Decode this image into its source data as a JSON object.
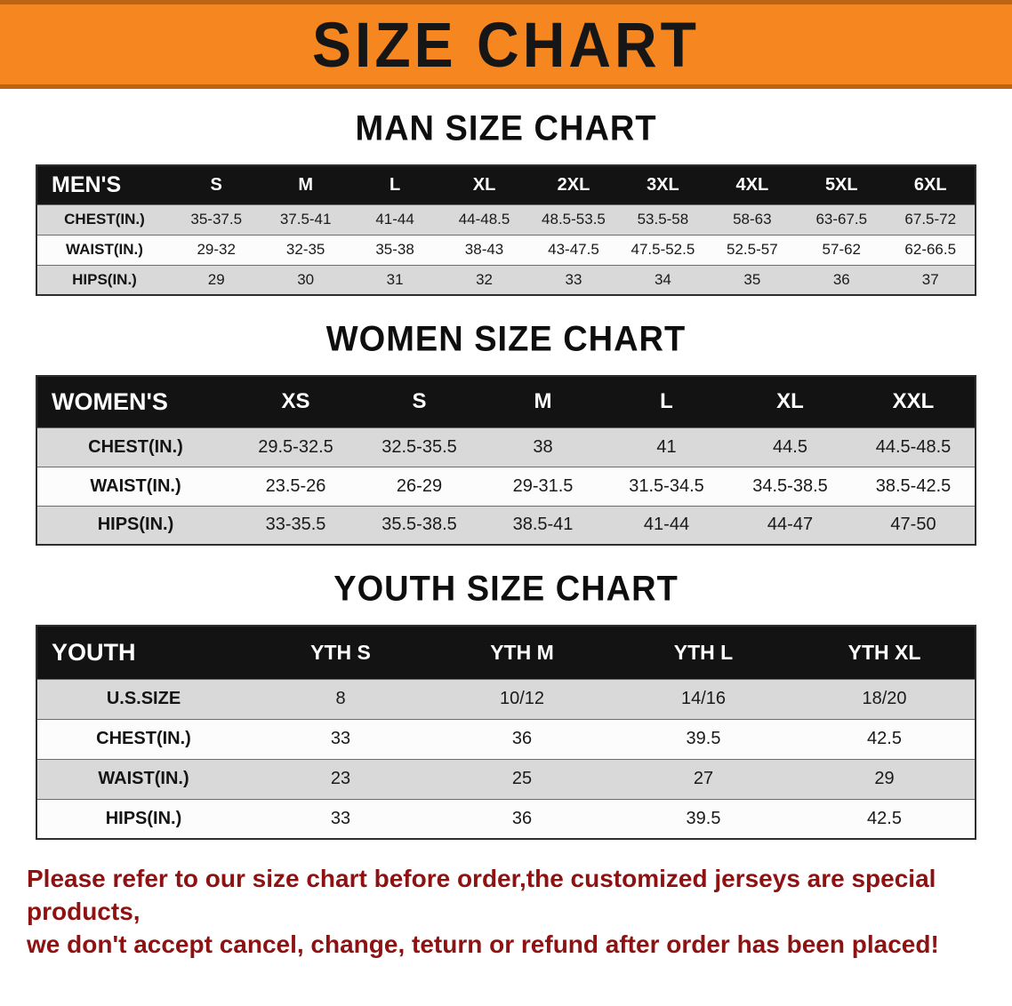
{
  "banner": {
    "title": "SIZE CHART"
  },
  "colors": {
    "banner_bg": "#f6861f",
    "table_header_bg": "#131313",
    "row_alt_bg": "#d9d9d9",
    "footer_text": "#8e1212"
  },
  "men": {
    "heading": "MAN SIZE CHART",
    "header": [
      "MEN'S",
      "S",
      "M",
      "L",
      "XL",
      "2XL",
      "3XL",
      "4XL",
      "5XL",
      "6XL"
    ],
    "rows": [
      [
        "CHEST(IN.)",
        "35-37.5",
        "37.5-41",
        "41-44",
        "44-48.5",
        "48.5-53.5",
        "53.5-58",
        "58-63",
        "63-67.5",
        "67.5-72"
      ],
      [
        "WAIST(IN.)",
        "29-32",
        "32-35",
        "35-38",
        "38-43",
        "43-47.5",
        "47.5-52.5",
        "52.5-57",
        "57-62",
        "62-66.5"
      ],
      [
        "HIPS(IN.)",
        "29",
        "30",
        "31",
        "32",
        "33",
        "34",
        "35",
        "36",
        "37"
      ]
    ]
  },
  "women": {
    "heading": "WOMEN SIZE CHART",
    "header": [
      "WOMEN'S",
      "XS",
      "S",
      "M",
      "L",
      "XL",
      "XXL"
    ],
    "rows": [
      [
        "CHEST(IN.)",
        "29.5-32.5",
        "32.5-35.5",
        "38",
        "41",
        "44.5",
        "44.5-48.5"
      ],
      [
        "WAIST(IN.)",
        "23.5-26",
        "26-29",
        "29-31.5",
        "31.5-34.5",
        "34.5-38.5",
        "38.5-42.5"
      ],
      [
        "HIPS(IN.)",
        "33-35.5",
        "35.5-38.5",
        "38.5-41",
        "41-44",
        "44-47",
        "47-50"
      ]
    ]
  },
  "youth": {
    "heading": "YOUTH SIZE CHART",
    "header": [
      "YOUTH",
      "YTH S",
      "YTH M",
      "YTH L",
      "YTH XL"
    ],
    "rows": [
      [
        "U.S.SIZE",
        "8",
        "10/12",
        "14/16",
        "18/20"
      ],
      [
        "CHEST(IN.)",
        "33",
        "36",
        "39.5",
        "42.5"
      ],
      [
        "WAIST(IN.)",
        "23",
        "25",
        "27",
        "29"
      ],
      [
        "HIPS(IN.)",
        "33",
        "36",
        "39.5",
        "42.5"
      ]
    ]
  },
  "footer": {
    "line1": "Please refer to our size chart before order,the customized jerseys are special products,",
    "line2": "we don't accept cancel, change, teturn or refund after order has been placed!"
  }
}
